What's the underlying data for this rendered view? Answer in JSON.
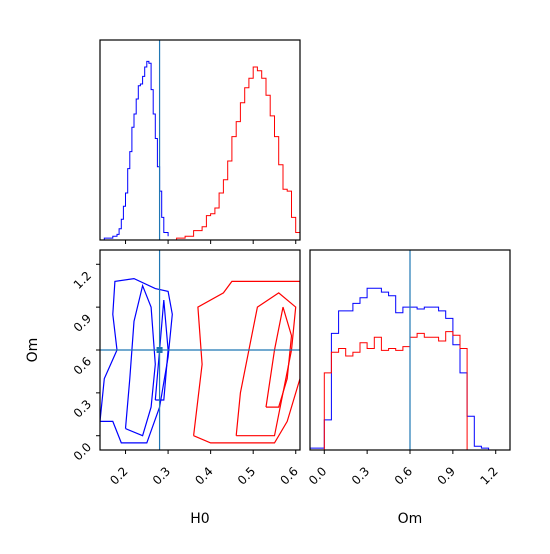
{
  "chart_data": [
    {
      "type": "histogram",
      "panel": "top-left",
      "xlim": [
        0.14,
        0.61
      ],
      "truth_x": 0.28,
      "x_ticks": [
        0.2,
        0.3,
        0.4,
        0.5,
        0.6
      ],
      "series": [
        {
          "color": "#0000ff",
          "x": [
            0.14,
            0.15,
            0.16,
            0.17,
            0.18,
            0.185,
            0.19,
            0.195,
            0.2,
            0.205,
            0.21,
            0.215,
            0.22,
            0.225,
            0.23,
            0.235,
            0.24,
            0.245,
            0.25,
            0.255,
            0.26,
            0.265,
            0.27,
            0.275,
            0.28,
            0.285,
            0.29,
            0.3
          ],
          "density": [
            0.0,
            0.01,
            0.01,
            0.02,
            0.03,
            0.06,
            0.11,
            0.18,
            0.25,
            0.38,
            0.47,
            0.6,
            0.67,
            0.75,
            0.82,
            0.83,
            0.87,
            0.92,
            0.95,
            0.94,
            0.8,
            0.67,
            0.54,
            0.39,
            0.26,
            0.12,
            0.04,
            0.02
          ]
        },
        {
          "color": "#ff0000",
          "x": [
            0.3,
            0.32,
            0.34,
            0.36,
            0.38,
            0.39,
            0.4,
            0.41,
            0.42,
            0.43,
            0.44,
            0.45,
            0.46,
            0.47,
            0.48,
            0.49,
            0.5,
            0.51,
            0.52,
            0.53,
            0.54,
            0.55,
            0.56,
            0.57,
            0.58,
            0.59,
            0.6,
            0.61
          ],
          "density": [
            0.0,
            0.01,
            0.02,
            0.05,
            0.07,
            0.13,
            0.14,
            0.17,
            0.25,
            0.32,
            0.42,
            0.55,
            0.63,
            0.73,
            0.81,
            0.86,
            0.92,
            0.9,
            0.86,
            0.77,
            0.66,
            0.55,
            0.4,
            0.27,
            0.26,
            0.12,
            0.04,
            0.0
          ]
        }
      ]
    },
    {
      "type": "contour",
      "panel": "bottom-left",
      "xlabel": "H0",
      "ylabel": "Om",
      "xlim": [
        0.14,
        0.61
      ],
      "ylim": [
        -0.1,
        1.3
      ],
      "x_ticks": [
        0.2,
        0.3,
        0.4,
        0.5,
        0.6
      ],
      "y_ticks": [
        0.0,
        0.3,
        0.6,
        0.9,
        1.2
      ],
      "truth": [
        0.28,
        0.6
      ],
      "series": [
        {
          "color": "#0000ff",
          "contours": [
            [
              [
                0.14,
                0.1
              ],
              [
                0.15,
                0.4
              ],
              [
                0.18,
                0.6
              ],
              [
                0.17,
                0.85
              ],
              [
                0.175,
                1.08
              ],
              [
                0.22,
                1.1
              ],
              [
                0.27,
                1.03
              ],
              [
                0.3,
                1.01
              ],
              [
                0.31,
                0.85
              ],
              [
                0.3,
                0.55
              ],
              [
                0.28,
                0.2
              ],
              [
                0.25,
                -0.05
              ],
              [
                0.19,
                -0.05
              ],
              [
                0.17,
                0.1
              ],
              [
                0.14,
                0.1
              ]
            ],
            [
              [
                0.2,
                0.05
              ],
              [
                0.21,
                0.4
              ],
              [
                0.22,
                0.8
              ],
              [
                0.24,
                1.05
              ],
              [
                0.26,
                0.9
              ],
              [
                0.27,
                0.5
              ],
              [
                0.26,
                0.2
              ],
              [
                0.24,
                0.0
              ],
              [
                0.2,
                0.05
              ]
            ],
            [
              [
                0.27,
                0.25
              ],
              [
                0.28,
                0.6
              ],
              [
                0.29,
                0.95
              ],
              [
                0.3,
                0.6
              ],
              [
                0.29,
                0.25
              ],
              [
                0.27,
                0.25
              ]
            ]
          ]
        },
        {
          "color": "#ff0000",
          "contours": [
            [
              [
                0.36,
                0.0
              ],
              [
                0.38,
                0.5
              ],
              [
                0.37,
                0.9
              ],
              [
                0.43,
                1.0
              ],
              [
                0.45,
                1.08
              ],
              [
                0.61,
                1.08
              ],
              [
                0.61,
                0.4
              ],
              [
                0.58,
                0.1
              ],
              [
                0.55,
                -0.05
              ],
              [
                0.4,
                -0.05
              ],
              [
                0.36,
                0.0
              ]
            ],
            [
              [
                0.46,
                0.0
              ],
              [
                0.47,
                0.3
              ],
              [
                0.49,
                0.6
              ],
              [
                0.51,
                0.9
              ],
              [
                0.56,
                1.0
              ],
              [
                0.6,
                0.9
              ],
              [
                0.59,
                0.6
              ],
              [
                0.57,
                0.3
              ],
              [
                0.55,
                0.0
              ],
              [
                0.46,
                0.0
              ]
            ],
            [
              [
                0.53,
                0.2
              ],
              [
                0.55,
                0.6
              ],
              [
                0.57,
                0.9
              ],
              [
                0.59,
                0.7
              ],
              [
                0.58,
                0.4
              ],
              [
                0.56,
                0.2
              ],
              [
                0.53,
                0.2
              ]
            ]
          ]
        }
      ]
    },
    {
      "type": "histogram",
      "panel": "bottom-right",
      "xlabel": "Om",
      "xlim": [
        -0.1,
        1.3
      ],
      "x_ticks": [
        0.0,
        0.3,
        0.6,
        0.9,
        1.2
      ],
      "truth_x": 0.6,
      "series": [
        {
          "color": "#0000ff",
          "x": [
            -0.1,
            0.0,
            0.05,
            0.1,
            0.15,
            0.2,
            0.25,
            0.3,
            0.35,
            0.4,
            0.45,
            0.5,
            0.55,
            0.6,
            0.65,
            0.7,
            0.75,
            0.8,
            0.85,
            0.9,
            0.95,
            1.0,
            1.05,
            1.1,
            1.15,
            1.2,
            1.25
          ],
          "density": [
            0.01,
            0.16,
            0.62,
            0.74,
            0.74,
            0.78,
            0.81,
            0.86,
            0.86,
            0.84,
            0.82,
            0.73,
            0.76,
            0.76,
            0.75,
            0.76,
            0.76,
            0.74,
            0.7,
            0.56,
            0.41,
            0.18,
            0.02,
            0.01,
            0.0,
            0.0,
            0.0
          ]
        },
        {
          "color": "#ff0000",
          "x": [
            0.0,
            0.05,
            0.1,
            0.15,
            0.2,
            0.25,
            0.3,
            0.35,
            0.4,
            0.45,
            0.5,
            0.55,
            0.6,
            0.65,
            0.7,
            0.75,
            0.8,
            0.85,
            0.9,
            0.95,
            1.0
          ],
          "density": [
            0.41,
            0.52,
            0.54,
            0.5,
            0.52,
            0.57,
            0.54,
            0.6,
            0.53,
            0.54,
            0.53,
            0.55,
            0.6,
            0.62,
            0.6,
            0.6,
            0.58,
            0.63,
            0.61,
            0.54,
            0.0
          ]
        }
      ]
    }
  ]
}
